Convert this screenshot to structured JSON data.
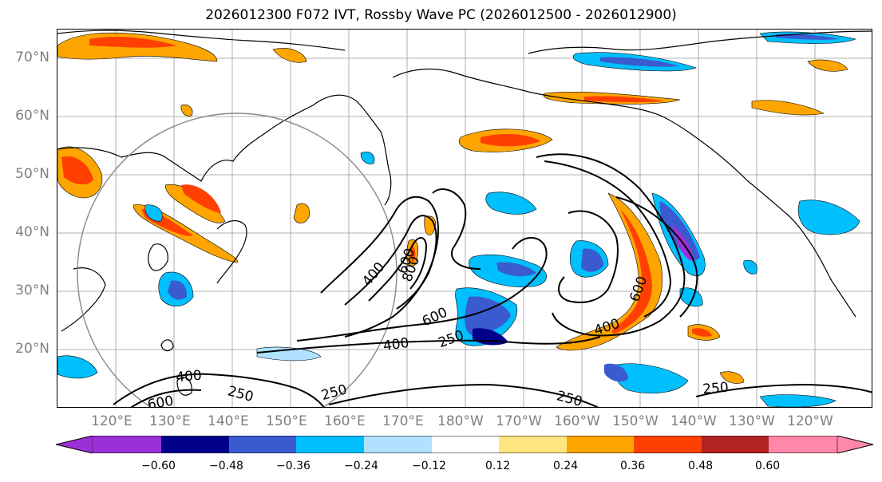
{
  "title": "2026012300 F072 IVT, Rossby Wave PC (2026012500 - 2026012900)",
  "lat_labels": [
    "70°N",
    "60°N",
    "50°N",
    "40°N",
    "30°N",
    "20°N"
  ],
  "lon_labels": [
    "120°E",
    "130°E",
    "140°E",
    "150°E",
    "160°E",
    "170°E",
    "180°W",
    "170°W",
    "160°W",
    "150°W",
    "140°W",
    "130°W",
    "120°W"
  ],
  "contour_labels": [
    "400",
    "600",
    "800",
    "600",
    "400",
    "250",
    "600",
    "400",
    "400",
    "600",
    "250",
    "250",
    "250",
    "250"
  ],
  "colorbar": {
    "ticks": [
      "−0.60",
      "−0.48",
      "−0.36",
      "−0.24",
      "−0.12",
      "0.12",
      "0.24",
      "0.36",
      "0.48",
      "0.60"
    ],
    "colors": [
      "#9b30d9",
      "#00008b",
      "#3a5bd0",
      "#00bfff",
      "#b0e2ff",
      "#ffffff",
      "#ffe680",
      "#ffa500",
      "#ff4000",
      "#b22222",
      "#ff88aa"
    ]
  }
}
